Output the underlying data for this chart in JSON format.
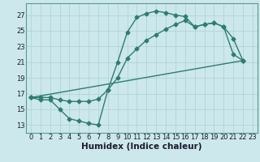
{
  "bg_color": "#cce8ec",
  "grid_color": "#b0d4da",
  "line_color": "#2e7d6e",
  "line_width": 1.0,
  "marker": "D",
  "marker_size": 2.5,
  "xlabel": "Humidex (Indice chaleur)",
  "xlabel_fontsize": 7.5,
  "tick_fontsize": 6.0,
  "xlim": [
    -0.5,
    23.5
  ],
  "ylim": [
    12.0,
    28.5
  ],
  "yticks": [
    13,
    15,
    17,
    19,
    21,
    23,
    25,
    27
  ],
  "xticks": [
    0,
    1,
    2,
    3,
    4,
    5,
    6,
    7,
    8,
    9,
    10,
    11,
    12,
    13,
    14,
    15,
    16,
    17,
    18,
    19,
    20,
    21,
    22,
    23
  ],
  "curve1_x": [
    0,
    1,
    2,
    3,
    4,
    5,
    6,
    7,
    8,
    9,
    10,
    11,
    12,
    13,
    14,
    15,
    16,
    17,
    18,
    19,
    20,
    21,
    22
  ],
  "curve1_y": [
    16.5,
    16.2,
    16.2,
    15.0,
    13.8,
    13.5,
    13.2,
    13.0,
    17.5,
    21.0,
    24.8,
    26.7,
    27.2,
    27.5,
    27.3,
    27.0,
    26.8,
    25.5,
    25.8,
    26.0,
    25.5,
    24.0,
    21.2
  ],
  "curve2_x": [
    0,
    1,
    2,
    3,
    4,
    5,
    6,
    7,
    8,
    9,
    10,
    11,
    12,
    13,
    14,
    15,
    16,
    17,
    18,
    19,
    20,
    21,
    22
  ],
  "curve2_y": [
    16.5,
    16.5,
    16.5,
    16.2,
    16.0,
    16.0,
    16.0,
    16.3,
    17.5,
    19.0,
    21.5,
    22.7,
    23.8,
    24.5,
    25.2,
    25.8,
    26.3,
    25.5,
    25.8,
    26.0,
    25.5,
    22.0,
    21.2
  ],
  "curve3_x": [
    0,
    22
  ],
  "curve3_y": [
    16.5,
    21.2
  ]
}
